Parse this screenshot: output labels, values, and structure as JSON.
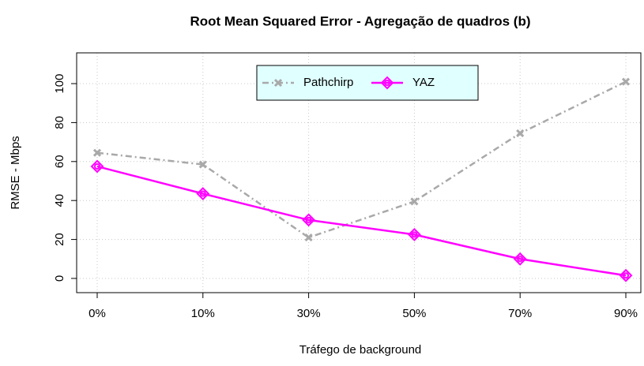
{
  "chart_data": {
    "type": "line",
    "title": "Root Mean Squared Error - Agregação de quadros (b)",
    "x_label": "Tráfego de background",
    "y_label": "RMSE - Mbps",
    "categories": [
      "0%",
      "10%",
      "30%",
      "50%",
      "70%",
      "90%"
    ],
    "series": [
      {
        "name": "Pathchirp",
        "color": "#a9a9a9",
        "values": [
          64.5,
          58.5,
          21,
          39.5,
          74.5,
          101
        ]
      },
      {
        "name": "YAZ",
        "color": "#ff00ff",
        "values": [
          57.5,
          43.5,
          30,
          22.5,
          10,
          1.5
        ]
      }
    ],
    "ylim": [
      -7.3,
      115.8
    ],
    "yticks": [
      0,
      20,
      40,
      60,
      80,
      100
    ],
    "grid": true,
    "legend": "top"
  }
}
